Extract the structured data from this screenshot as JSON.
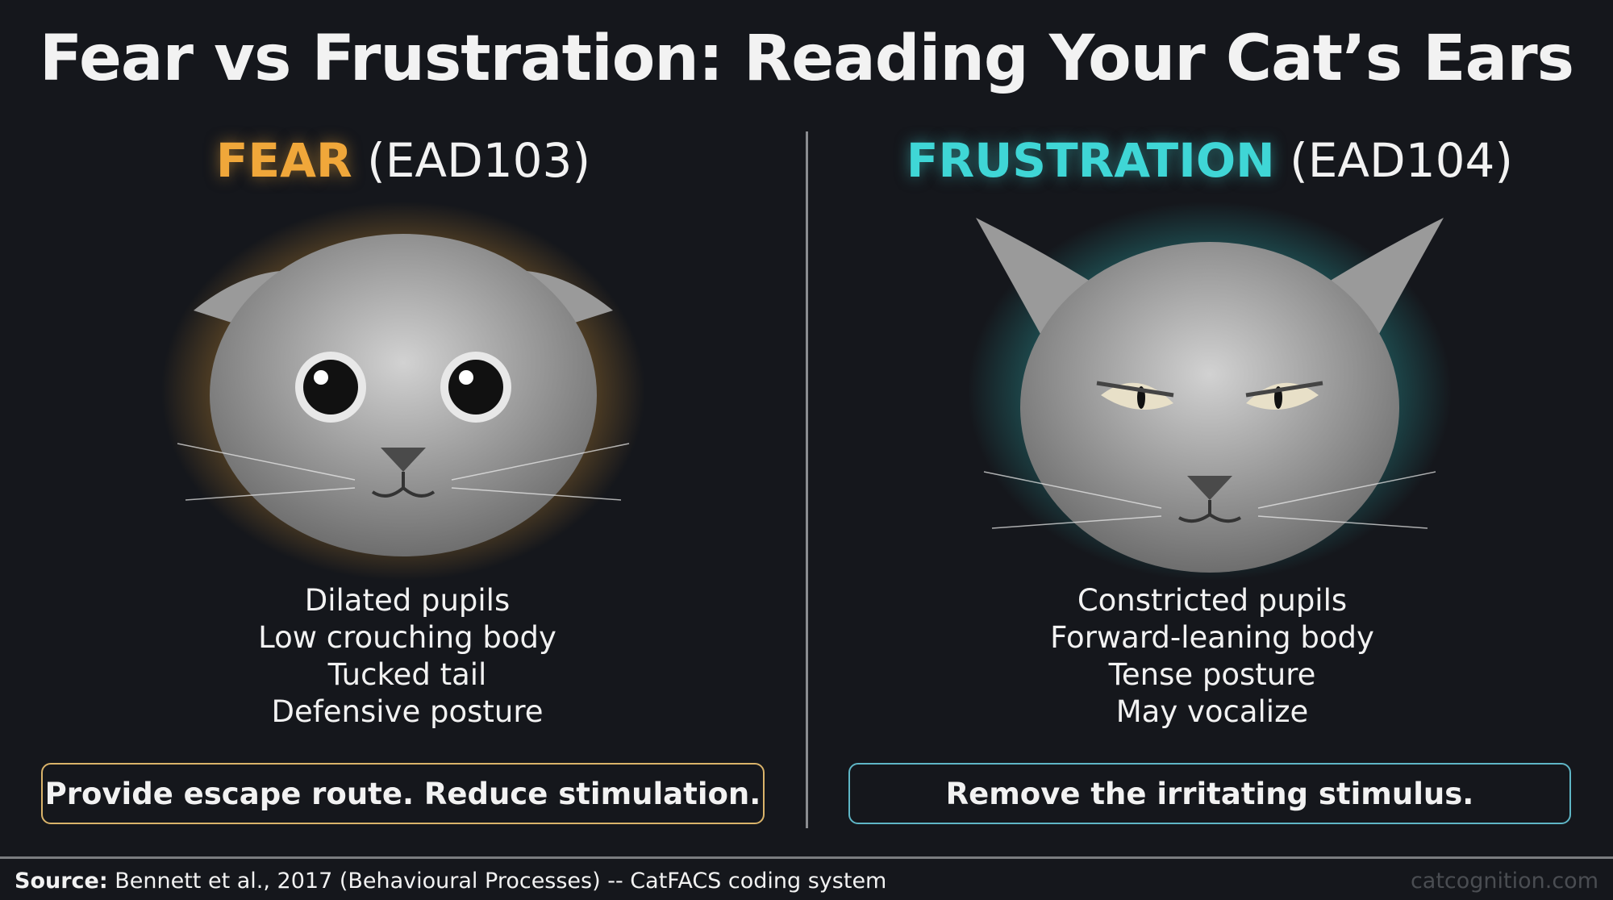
{
  "title": "Fear vs Frustration: Reading Your Cat’s Ears",
  "fear": {
    "keyword": "FEAR",
    "code": "(EAD103)",
    "accent": "#f0a73a",
    "traits": [
      "Dilated pupils",
      "Low crouching body",
      "Tucked tail",
      "Defensive posture"
    ],
    "advice": "Provide escape route. Reduce stimulation."
  },
  "frustration": {
    "keyword": "FRUSTRATION",
    "code": "(EAD104)",
    "accent": "#3fd6d6",
    "traits": [
      "Constricted pupils",
      "Forward-leaning body",
      "Tense posture",
      "May vocalize"
    ],
    "advice": "Remove the irritating stimulus."
  },
  "footer": {
    "source_label": "Source:",
    "source_text": "Bennett et al., 2017 (Behavioural Processes) -- CatFACS coding system",
    "site": "catcognition.com"
  }
}
